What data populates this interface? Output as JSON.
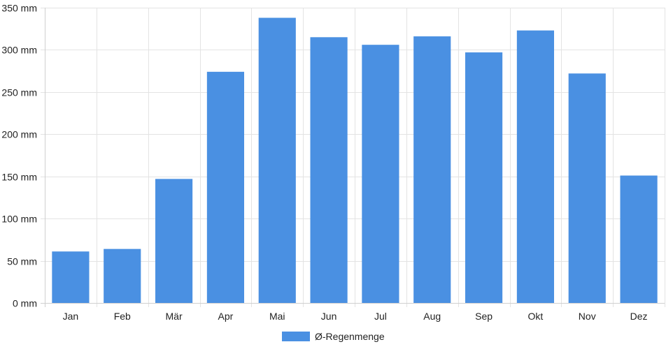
{
  "chart_data": {
    "type": "bar",
    "categories": [
      "Jan",
      "Feb",
      "Mär",
      "Apr",
      "Mai",
      "Jun",
      "Jul",
      "Aug",
      "Sep",
      "Okt",
      "Nov",
      "Dez"
    ],
    "series": [
      {
        "name": "Ø-Regenmenge",
        "values": [
          61,
          64,
          147,
          274,
          338,
          315,
          306,
          316,
          297,
          323,
          272,
          151
        ],
        "color": "#4a90e2"
      }
    ],
    "y_unit": "mm",
    "y_ticks": [
      0,
      50,
      100,
      150,
      200,
      250,
      300,
      350
    ],
    "y_tick_labels": [
      "0 mm",
      "50 mm",
      "100 mm",
      "150 mm",
      "200 mm",
      "250 mm",
      "300 mm",
      "350 mm"
    ],
    "ylim": [
      0,
      350
    ],
    "grid": true,
    "legend_position": "bottom-center",
    "title": "",
    "xlabel": "",
    "ylabel": ""
  }
}
